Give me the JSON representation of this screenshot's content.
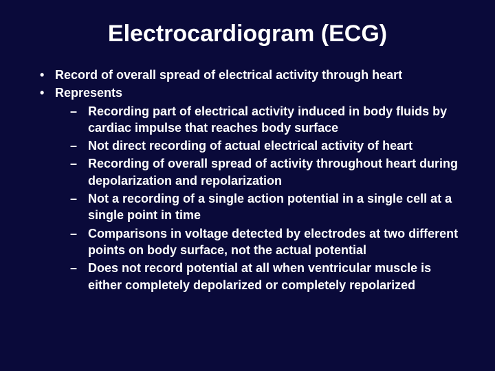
{
  "title": "Electrocardiogram (ECG)",
  "bullets": {
    "b0": "Record of overall spread of electrical activity through heart",
    "b1": "Represents",
    "sub": {
      "s0": "Recording part of electrical activity induced in body fluids by cardiac impulse that reaches body surface",
      "s1": "Not direct recording of actual electrical activity of heart",
      "s2": "Recording of overall spread of activity throughout heart during depolarization and repolarization",
      "s3": "Not a recording of a single action potential in a single cell at a single point in time",
      "s4": "Comparisons in voltage detected by electrodes at two different points on body surface, not the actual potential",
      "s5": "Does not record potential at all when ventricular muscle is either completely depolarized or completely repolarized"
    }
  },
  "colors": {
    "background": "#0a0a3a",
    "text": "#ffffff"
  },
  "typography": {
    "title_fontsize": 34,
    "body_fontsize": 18,
    "font_family": "Arial",
    "font_weight": "bold"
  }
}
